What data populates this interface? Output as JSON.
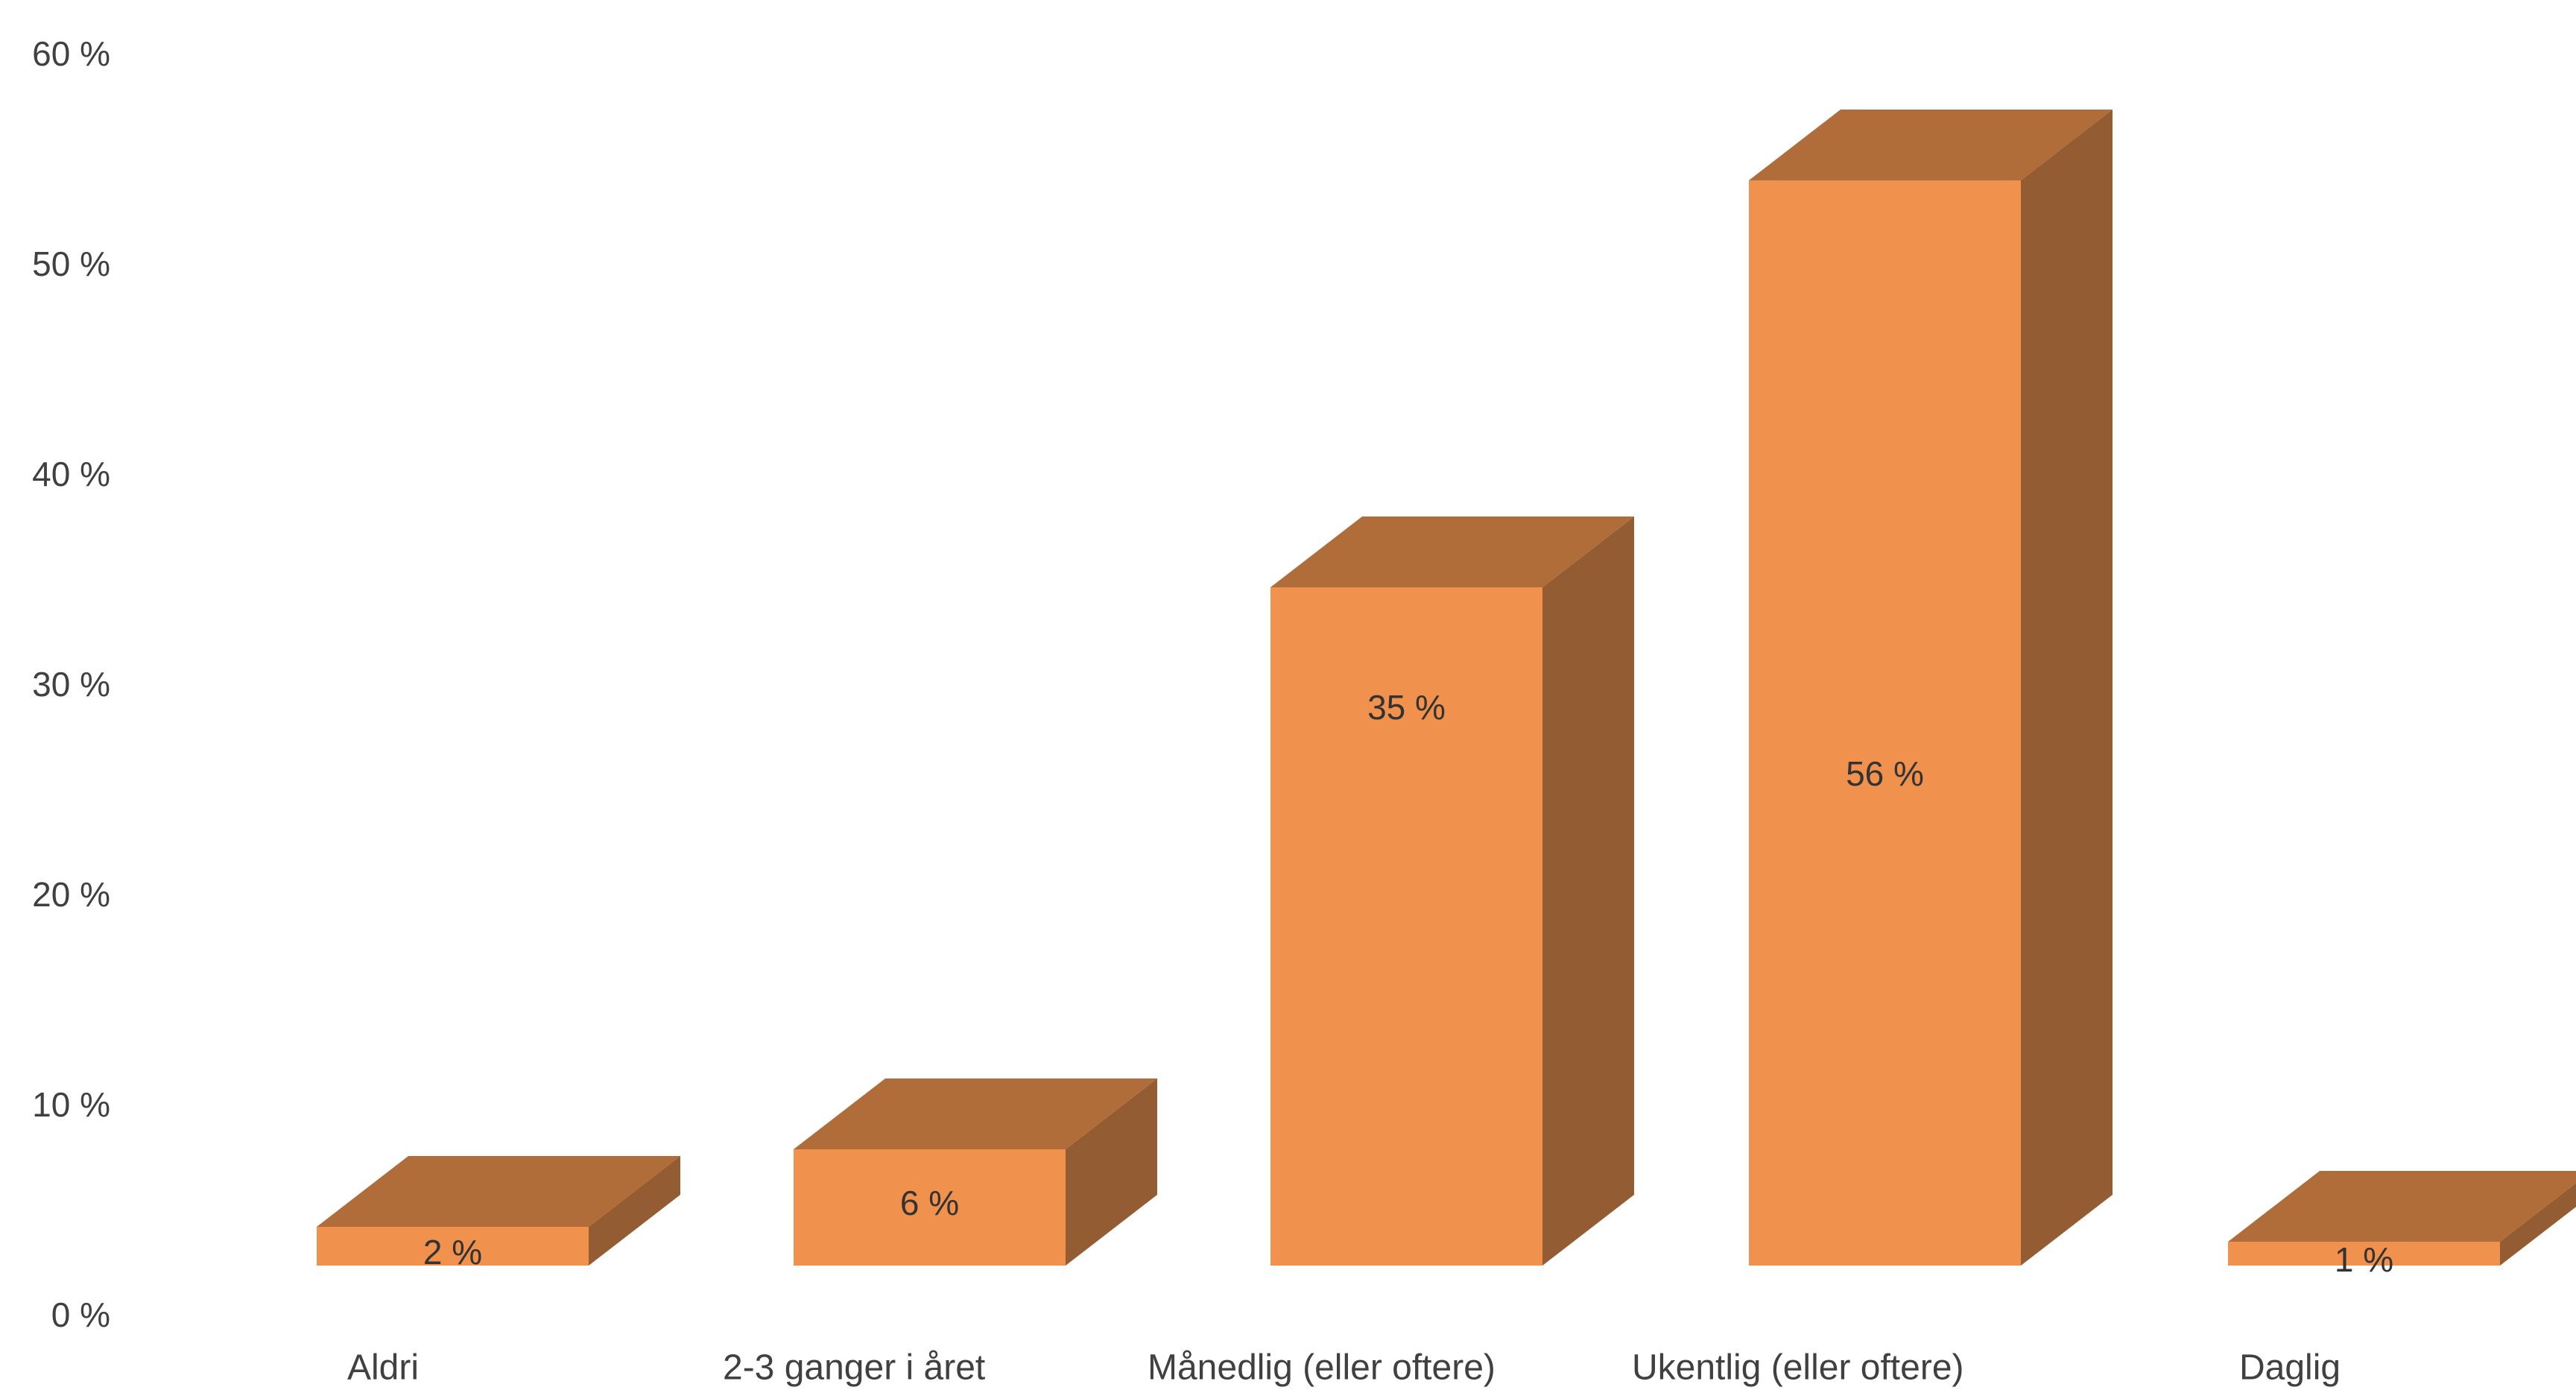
{
  "chart_data": {
    "type": "bar",
    "style": "3d-column",
    "categories": [
      "Aldri",
      "2-3 ganger i året",
      "Månedlig (eller oftere)",
      "Ukentlig (eller oftere)",
      "Daglig"
    ],
    "values": [
      2,
      6,
      35,
      56,
      1
    ],
    "data_labels": [
      "2 %",
      "6 %",
      "35 %",
      "56 %",
      "1 %"
    ],
    "y_ticks": [
      0,
      10,
      20,
      30,
      40,
      50,
      60
    ],
    "y_tick_labels": [
      "0 %",
      "10 %",
      "20 %",
      "30 %",
      "40 %",
      "50 %",
      "60 %"
    ],
    "ylim": [
      0,
      60
    ],
    "grid": false,
    "legend": "none",
    "title": "",
    "xlabel": "",
    "ylabel": "",
    "colors": {
      "front": "#F0914E",
      "top": "#B06C39",
      "side": "#935C32",
      "text": "#404040"
    }
  }
}
